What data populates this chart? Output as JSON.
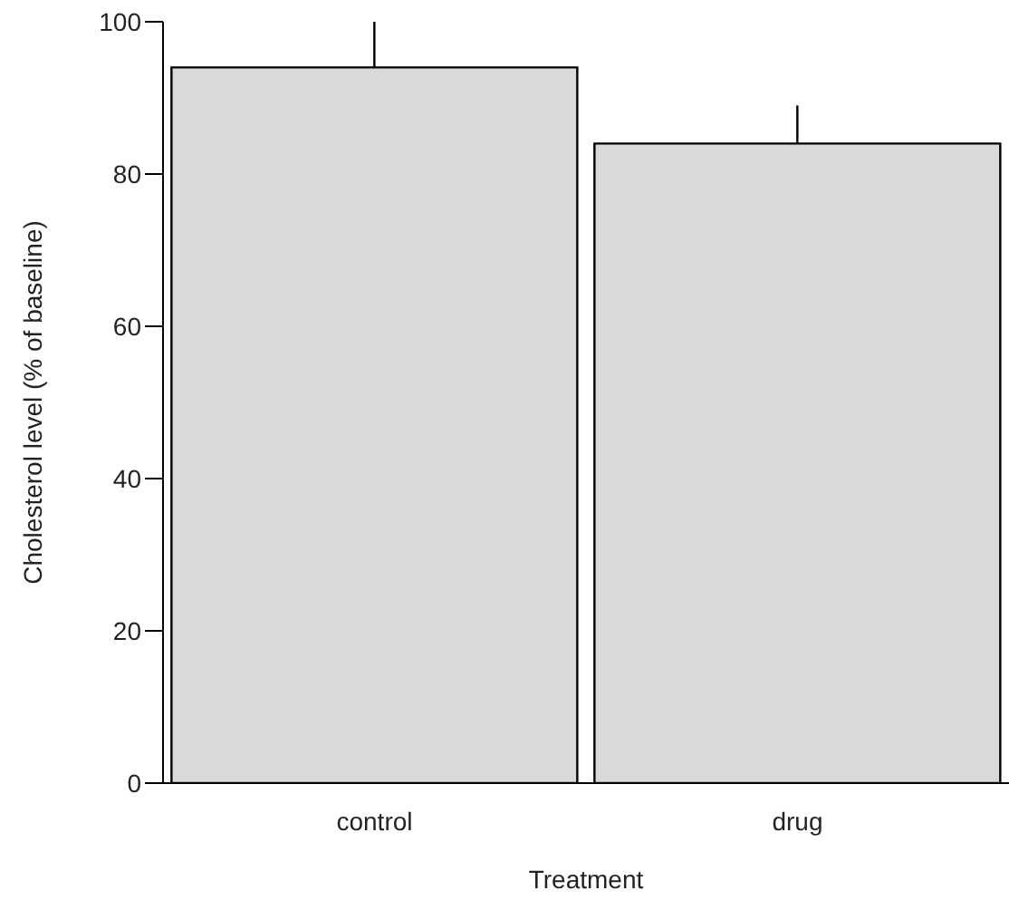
{
  "chart_data": {
    "type": "bar",
    "xlabel": "Treatment",
    "ylabel": "Cholesterol level (% of baseline)",
    "categories": [
      "control",
      "drug"
    ],
    "values": [
      94,
      84
    ],
    "errors": [
      [
        94,
        100
      ],
      [
        84,
        89
      ]
    ],
    "color": "#d9d9d9",
    "ylim": [
      0,
      100
    ],
    "yticks": [
      0,
      20,
      40,
      60,
      80,
      100
    ],
    "grid": false,
    "legend": false
  }
}
